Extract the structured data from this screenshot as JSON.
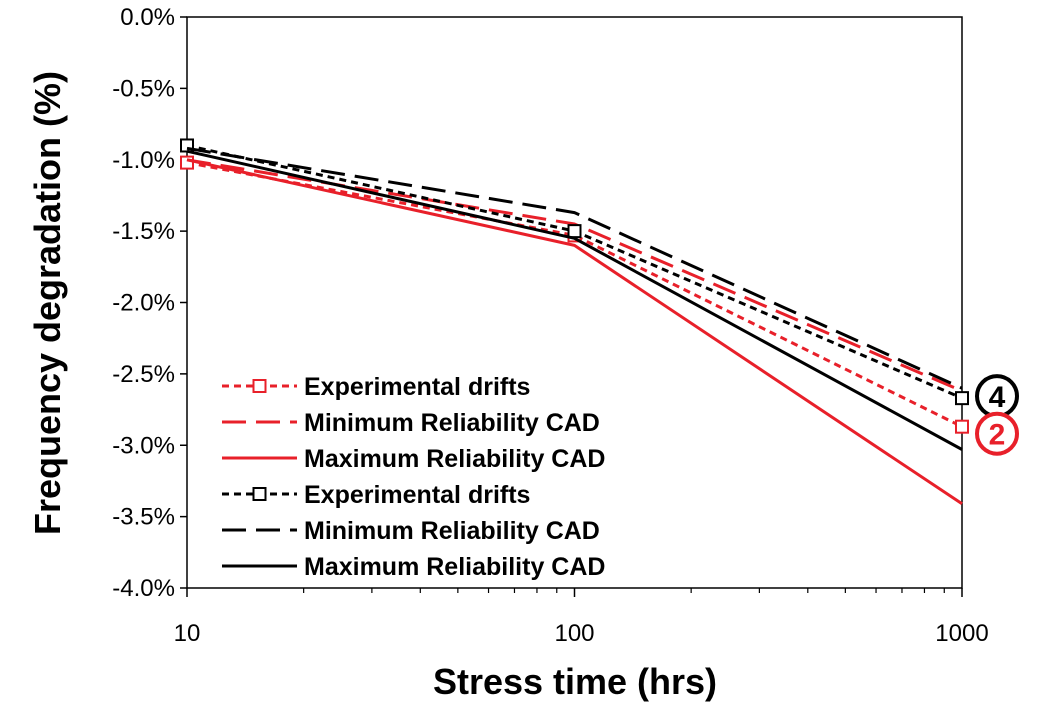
{
  "chart_data": {
    "type": "line",
    "xscale": "log",
    "x": [
      10,
      100,
      1000
    ],
    "xlim": [
      10,
      1000
    ],
    "ylim": [
      -4.0,
      0.0
    ],
    "x_ticks": [
      "10",
      "100",
      "1000"
    ],
    "y_ticks": [
      "0.0%",
      "-0.5%",
      "-1.0%",
      "-1.5%",
      "-2.0%",
      "-2.5%",
      "-3.0%",
      "-3.5%",
      "-4.0%"
    ],
    "y_tick_values": [
      0.0,
      -0.5,
      -1.0,
      -1.5,
      -2.0,
      -2.5,
      -3.0,
      -3.5,
      -4.0
    ],
    "xlabel": "Stress time (hrs)",
    "ylabel": "Frequency degradation (%)",
    "grid": false,
    "legend_position": "bottom-left",
    "series": [
      {
        "name": "Experimental drifts",
        "values": [
          -1.02,
          -1.53,
          -2.87
        ],
        "color": "#e8202a",
        "style": "short-dash",
        "marker": "square"
      },
      {
        "name": "Minimum Reliability CAD",
        "values": [
          -1.0,
          -1.45,
          -2.62
        ],
        "color": "#e8202a",
        "style": "long-dash",
        "marker": "none"
      },
      {
        "name": "Maximum Reliability CAD",
        "values": [
          -1.0,
          -1.6,
          -3.41
        ],
        "color": "#e8202a",
        "style": "solid",
        "marker": "none"
      },
      {
        "name": "Experimental drifts",
        "values": [
          -0.9,
          -1.5,
          -2.67
        ],
        "color": "#000000",
        "style": "short-dash",
        "marker": "square"
      },
      {
        "name": "Minimum Reliability CAD",
        "values": [
          -0.92,
          -1.37,
          -2.6
        ],
        "color": "#000000",
        "style": "long-dash",
        "marker": "none"
      },
      {
        "name": "Maximum Reliability CAD",
        "values": [
          -0.94,
          -1.55,
          -3.03
        ],
        "color": "#000000",
        "style": "solid",
        "marker": "none"
      }
    ],
    "annotations": [
      {
        "text": "4",
        "x": 1000,
        "y": -2.67,
        "color": "#000000"
      },
      {
        "text": "2",
        "x": 1000,
        "y": -2.87,
        "color": "#e8202a"
      }
    ]
  }
}
